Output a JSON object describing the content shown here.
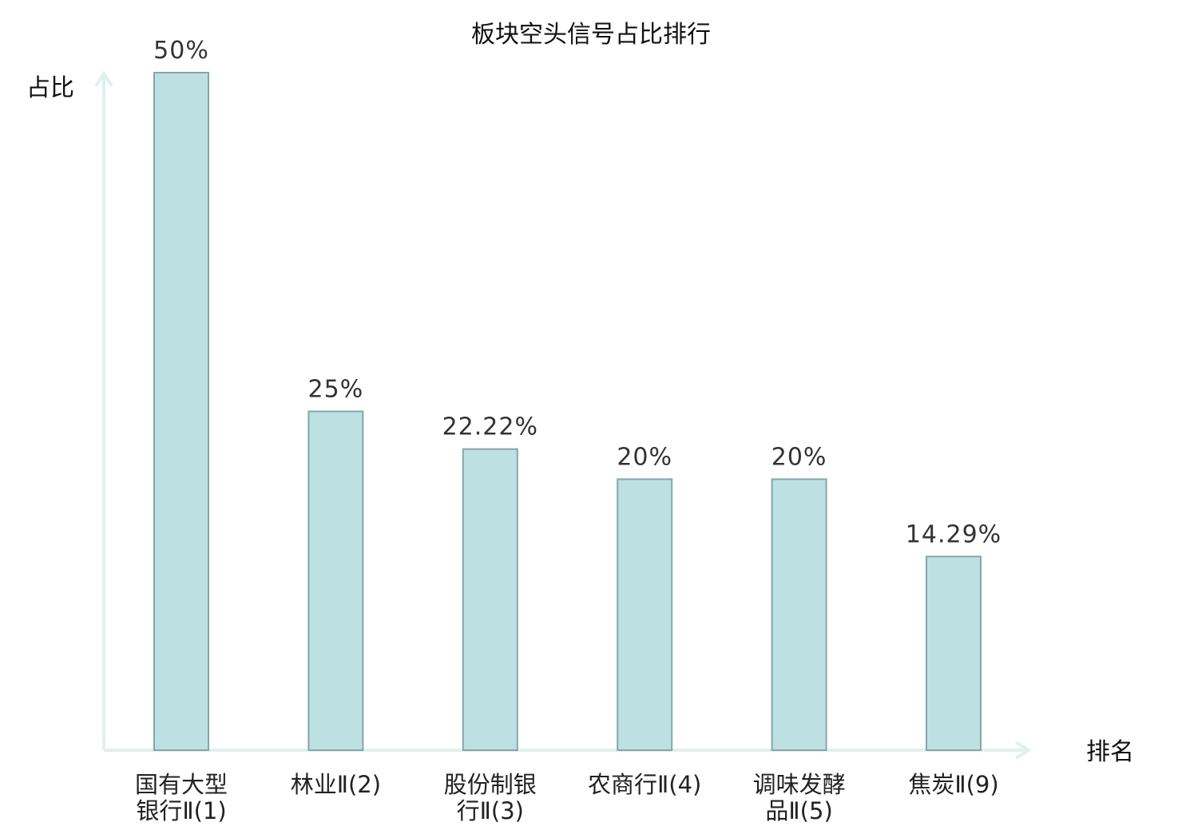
{
  "chart_data": {
    "type": "bar",
    "title": "板块空头信号占比排行",
    "ylabel": "占比",
    "xlabel": "排名",
    "ylim": [
      0,
      50
    ],
    "grid": false,
    "categories": [
      [
        "国有大型",
        "银行Ⅱ(1)"
      ],
      [
        "林业Ⅱ(2)"
      ],
      [
        "股份制银",
        "行Ⅱ(3)"
      ],
      [
        "农商行Ⅱ(4)"
      ],
      [
        "调味发酵",
        "品Ⅱ(5)"
      ],
      [
        "焦炭Ⅱ(9)"
      ]
    ],
    "values": [
      50,
      25,
      22.22,
      20,
      20,
      14.29
    ],
    "value_labels": [
      "50%",
      "25%",
      "22.22%",
      "20%",
      "20%",
      "14.29%"
    ],
    "highlight_index": 5,
    "colors": {
      "bar_fill": "#bde0e3",
      "bar_stroke": "#86a6a8",
      "axis": "#dff1ee",
      "highlight_text": "#d81e1e",
      "text": "#222222"
    }
  }
}
